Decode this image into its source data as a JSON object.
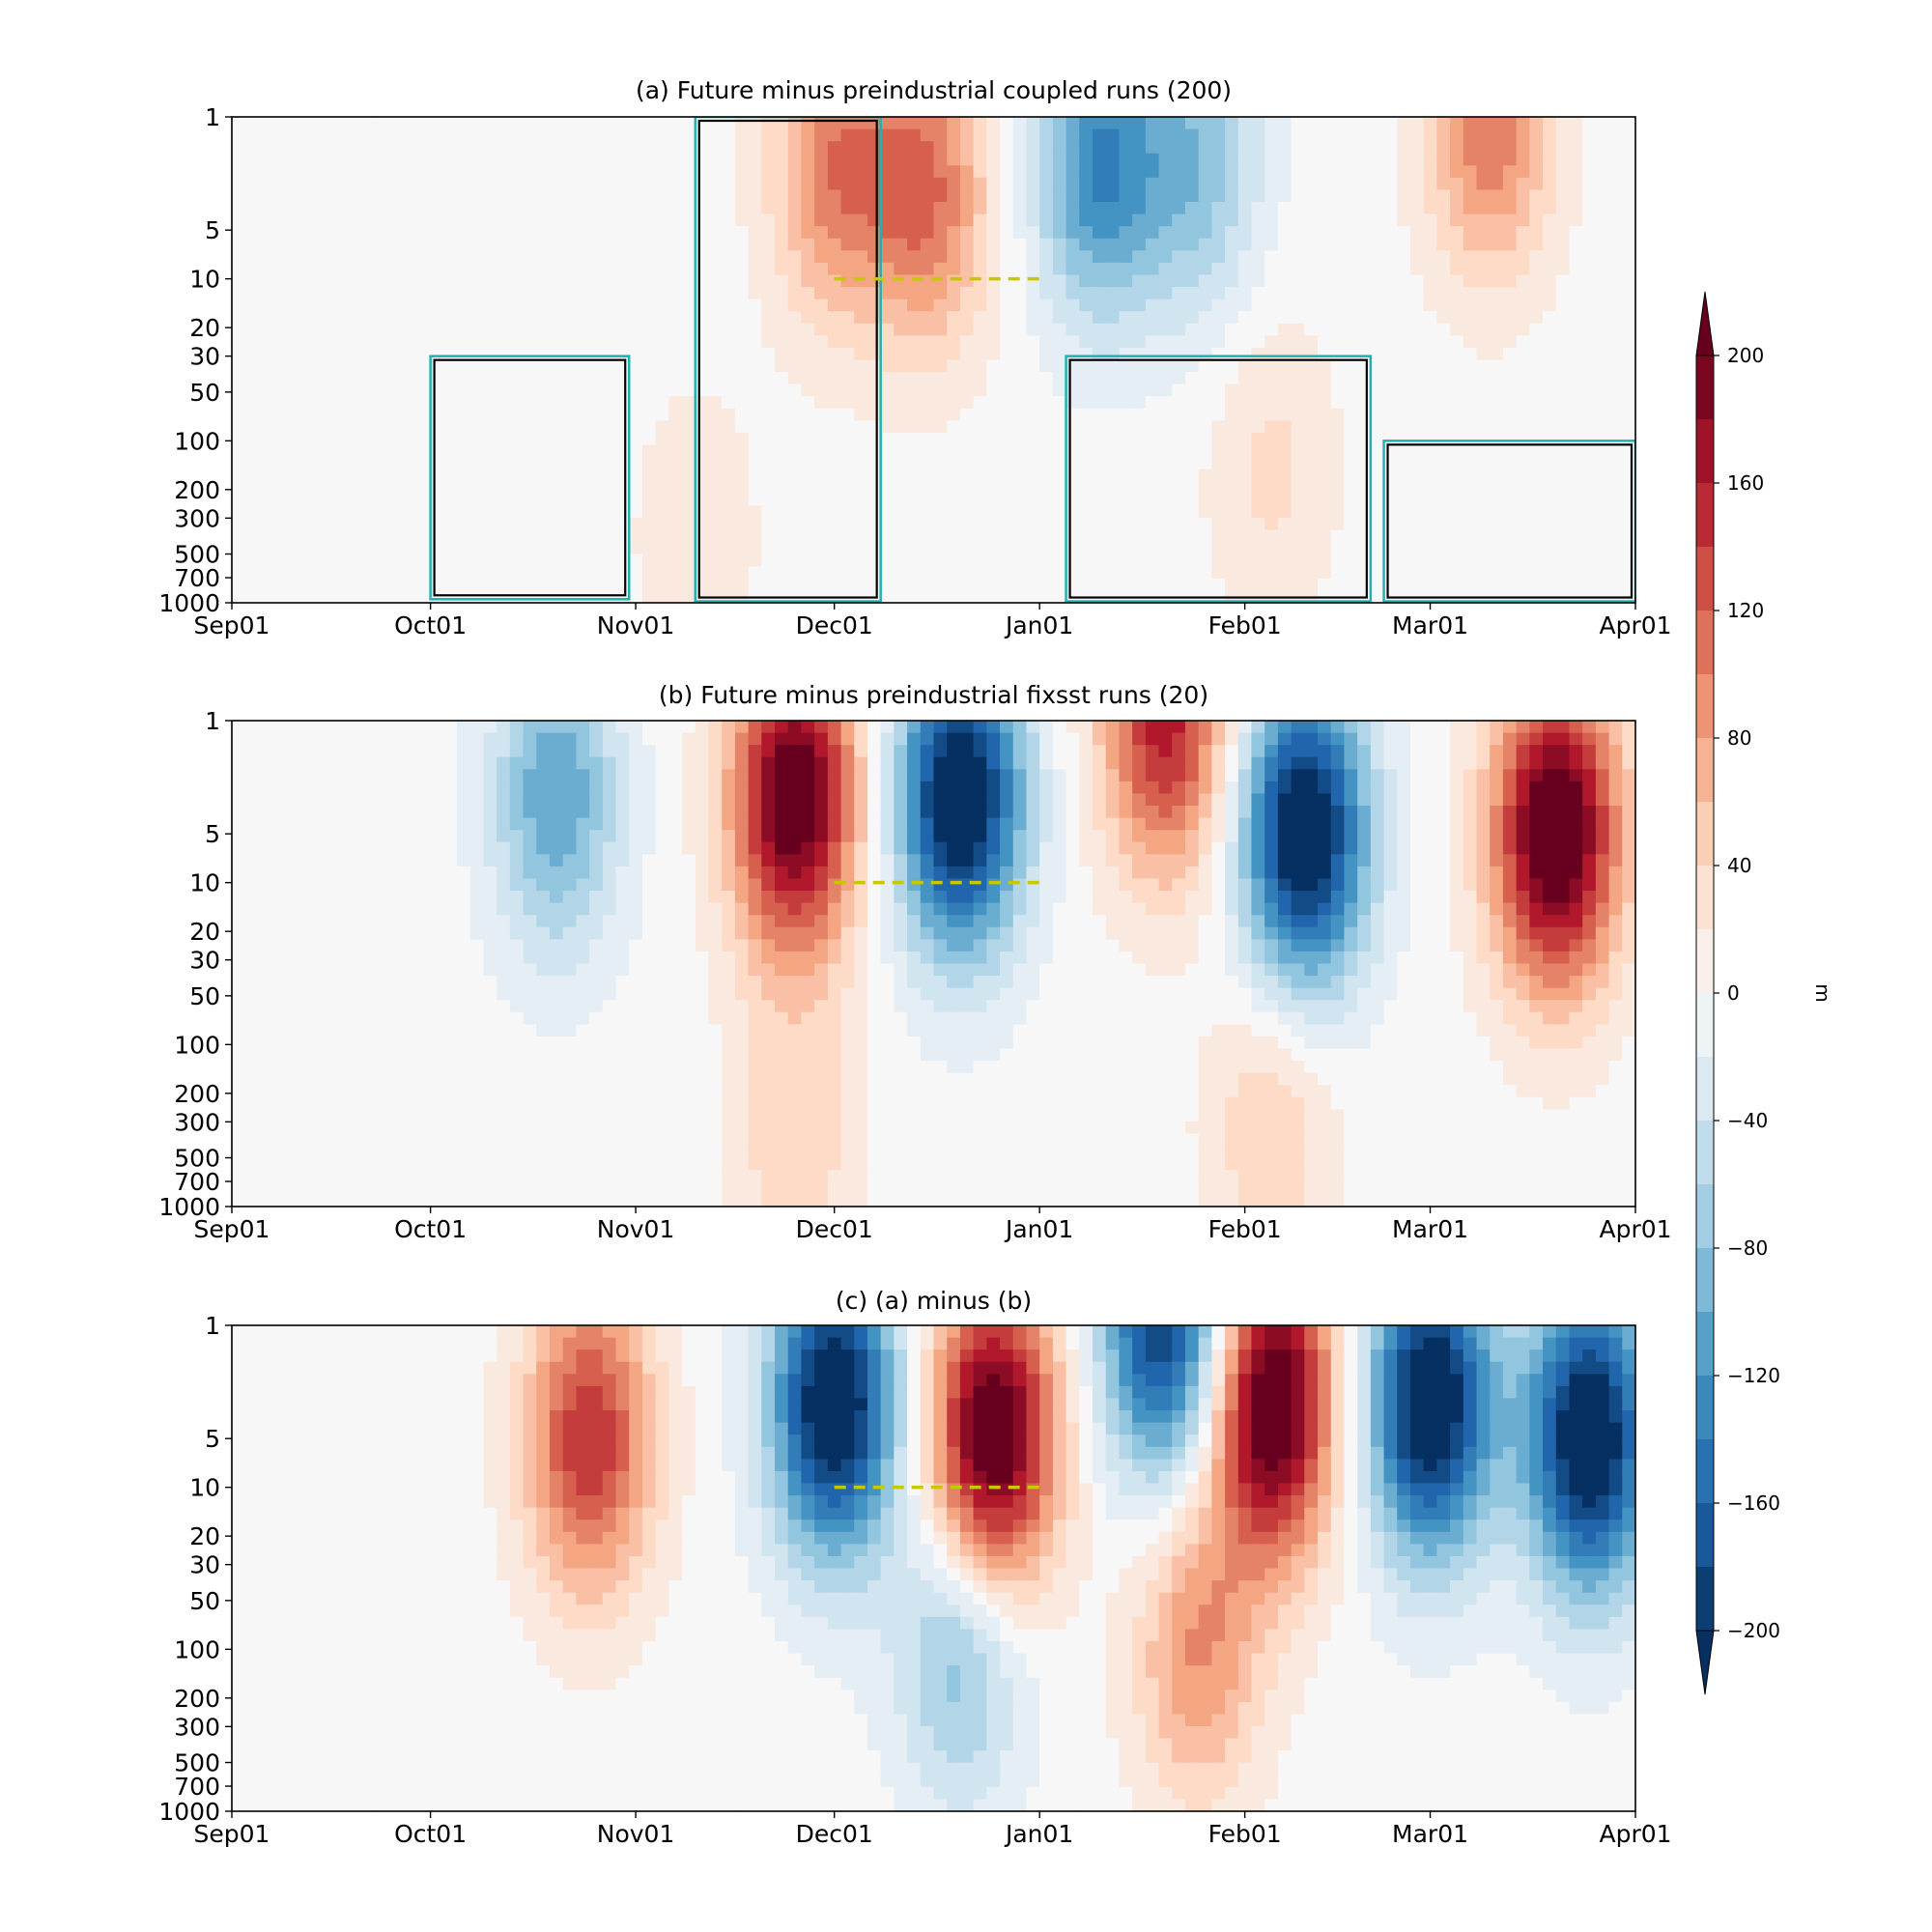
{
  "chart_data": [
    {
      "type": "heatmap",
      "id": "a",
      "title": "(a) Future minus preindustrial coupled runs (200)",
      "x_ticks": [
        "Sep01",
        "Oct01",
        "Nov01",
        "Dec01",
        "Jan01",
        "Feb01",
        "Mar01",
        "Apr01"
      ],
      "y_ticks": [
        "1",
        "5",
        "10",
        "20",
        "30",
        "50",
        "100",
        "200",
        "300",
        "500",
        "700",
        "1000"
      ],
      "y_scale": "log",
      "y_inverted": true,
      "xlim": [
        "Sep01",
        "Apr01"
      ],
      "ylim": [
        1000,
        1
      ],
      "color_amplitude": 0.45,
      "anomaly_features": [
        {
          "x": "Dec15",
          "y": 3,
          "value": 110
        },
        {
          "x": "Dec01",
          "y": 2,
          "value": 100
        },
        {
          "x": "Jan10",
          "y": 2,
          "value": -130
        },
        {
          "x": "Jan25",
          "y": 2,
          "value": -80
        },
        {
          "x": "Mar10",
          "y": 1,
          "value": 110
        },
        {
          "x": "Nov10",
          "y": 400,
          "value": 25
        },
        {
          "x": "Feb05",
          "y": 150,
          "value": 35
        }
      ],
      "significance_regions_black": [
        {
          "x_start": "Oct01",
          "x_end": "Oct31",
          "p_top": 30,
          "p_bottom": 950
        },
        {
          "x_start": "Nov10",
          "x_end": "Dec08",
          "p_top": 1,
          "p_bottom": 980
        },
        {
          "x_start": "Jan05",
          "x_end": "Feb20",
          "p_top": 30,
          "p_bottom": 980
        },
        {
          "x_start": "Feb22",
          "x_end": "Apr01",
          "p_top": 100,
          "p_bottom": 980
        }
      ],
      "dashed_line": {
        "x_start": "Dec01",
        "x_end": "Jan01",
        "p": 10,
        "color": "#c8c800"
      }
    },
    {
      "type": "heatmap",
      "id": "b",
      "title": "(b) Future minus preindustrial fixsst runs (20)",
      "x_ticks": [
        "Sep01",
        "Oct01",
        "Nov01",
        "Dec01",
        "Jan01",
        "Feb01",
        "Mar01",
        "Apr01"
      ],
      "y_ticks": [
        "1",
        "5",
        "10",
        "20",
        "30",
        "50",
        "100",
        "200",
        "300",
        "500",
        "700",
        "1000"
      ],
      "y_scale": "log",
      "y_inverted": true,
      "xlim": [
        "Sep01",
        "Apr01"
      ],
      "ylim": [
        1000,
        1
      ],
      "color_amplitude": 1.0,
      "anomaly_features": [
        {
          "x": "Oct20",
          "y": 3,
          "value": -110
        },
        {
          "x": "Nov25",
          "y": 3,
          "value": 220
        },
        {
          "x": "Dec20",
          "y": 3,
          "value": -230
        },
        {
          "x": "Jan20",
          "y": 1,
          "value": 160
        },
        {
          "x": "Feb10",
          "y": 5,
          "value": -230
        },
        {
          "x": "Mar20",
          "y": 5,
          "value": 230
        },
        {
          "x": "Nov25",
          "y": 400,
          "value": 45
        },
        {
          "x": "Feb05",
          "y": 300,
          "value": 50
        }
      ],
      "dashed_line": {
        "x_start": "Dec01",
        "x_end": "Jan01",
        "p": 10,
        "color": "#c8c800"
      }
    },
    {
      "type": "heatmap",
      "id": "c",
      "title": "(c) (a) minus (b)",
      "x_ticks": [
        "Sep01",
        "Oct01",
        "Nov01",
        "Dec01",
        "Jan01",
        "Feb01",
        "Mar01",
        "Apr01"
      ],
      "y_ticks": [
        "1",
        "5",
        "10",
        "20",
        "30",
        "50",
        "100",
        "200",
        "300",
        "500",
        "700",
        "1000"
      ],
      "y_scale": "log",
      "y_inverted": true,
      "xlim": [
        "Sep01",
        "Apr01"
      ],
      "ylim": [
        1000,
        1
      ],
      "color_amplitude": 1.0,
      "anomaly_features": [
        {
          "x": "Oct25",
          "y": 5,
          "value": 150
        },
        {
          "x": "Dec01",
          "y": 3,
          "value": -230
        },
        {
          "x": "Dec25",
          "y": 5,
          "value": 230
        },
        {
          "x": "Jan20",
          "y": 1,
          "value": -200
        },
        {
          "x": "Feb05",
          "y": 3,
          "value": 230
        },
        {
          "x": "Mar01",
          "y": 3,
          "value": -230
        },
        {
          "x": "Mar25",
          "y": 5,
          "value": -230
        },
        {
          "x": "Dec20",
          "y": 100,
          "value": -90
        },
        {
          "x": "Jan25",
          "y": 100,
          "value": 90
        }
      ],
      "dashed_line": {
        "x_start": "Dec01",
        "x_end": "Jan01",
        "p": 10,
        "color": "#c8c800"
      }
    }
  ],
  "colorbar": {
    "label": "m",
    "ticks": [
      "200",
      "160",
      "120",
      "80",
      "40",
      "0",
      "−40",
      "−80",
      "−120",
      "−160",
      "−200"
    ],
    "tick_values": [
      200,
      160,
      120,
      80,
      40,
      0,
      -40,
      -80,
      -120,
      -160,
      -200
    ],
    "range": [
      -200,
      200
    ],
    "extend": "both",
    "colormap": "RdBu_r",
    "colors": [
      "#053061",
      "#2166ac",
      "#4393c3",
      "#92c5de",
      "#d1e5f0",
      "#f7f7f7",
      "#fddbc7",
      "#f4a582",
      "#d6604d",
      "#b2182b",
      "#67001f"
    ]
  },
  "contour_colors": {
    "significance_90": "#20b2b2",
    "significance_95": "#000000"
  }
}
